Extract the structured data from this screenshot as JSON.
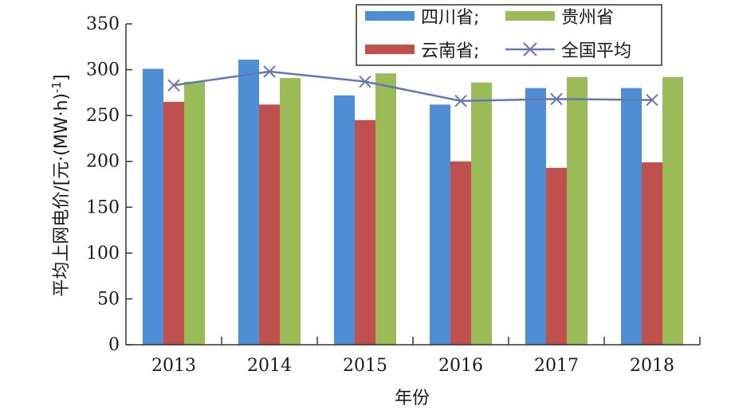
{
  "chart_data": {
    "type": "bar",
    "title": "",
    "xlabel": "年份",
    "ylabel": "平均上网电价/[元·(MW·h)",
    "ylabel_sup": "-1",
    "ylabel_close": "]",
    "ylim": [
      0,
      350
    ],
    "yticks": [
      0,
      50,
      100,
      150,
      200,
      250,
      300,
      350
    ],
    "categories": [
      "2013",
      "2014",
      "2015",
      "2016",
      "2017",
      "2018"
    ],
    "series": [
      {
        "name": "四川省;",
        "type": "bar",
        "color": "#4f8ed4",
        "values": [
          301,
          311,
          272,
          262,
          280,
          280
        ]
      },
      {
        "name": "云南省;",
        "type": "bar",
        "color": "#c0504d",
        "values": [
          265,
          262,
          245,
          200,
          193,
          199
        ]
      },
      {
        "name": "贵州省",
        "type": "bar",
        "color": "#9bbb59",
        "values": [
          287,
          291,
          296,
          286,
          292,
          292
        ]
      },
      {
        "name": "全国平均",
        "type": "line",
        "color": "#6576b4",
        "marker": "x",
        "values": [
          283,
          298,
          287,
          266,
          268,
          267
        ]
      }
    ],
    "legend_position": "top-right",
    "grid": false
  }
}
